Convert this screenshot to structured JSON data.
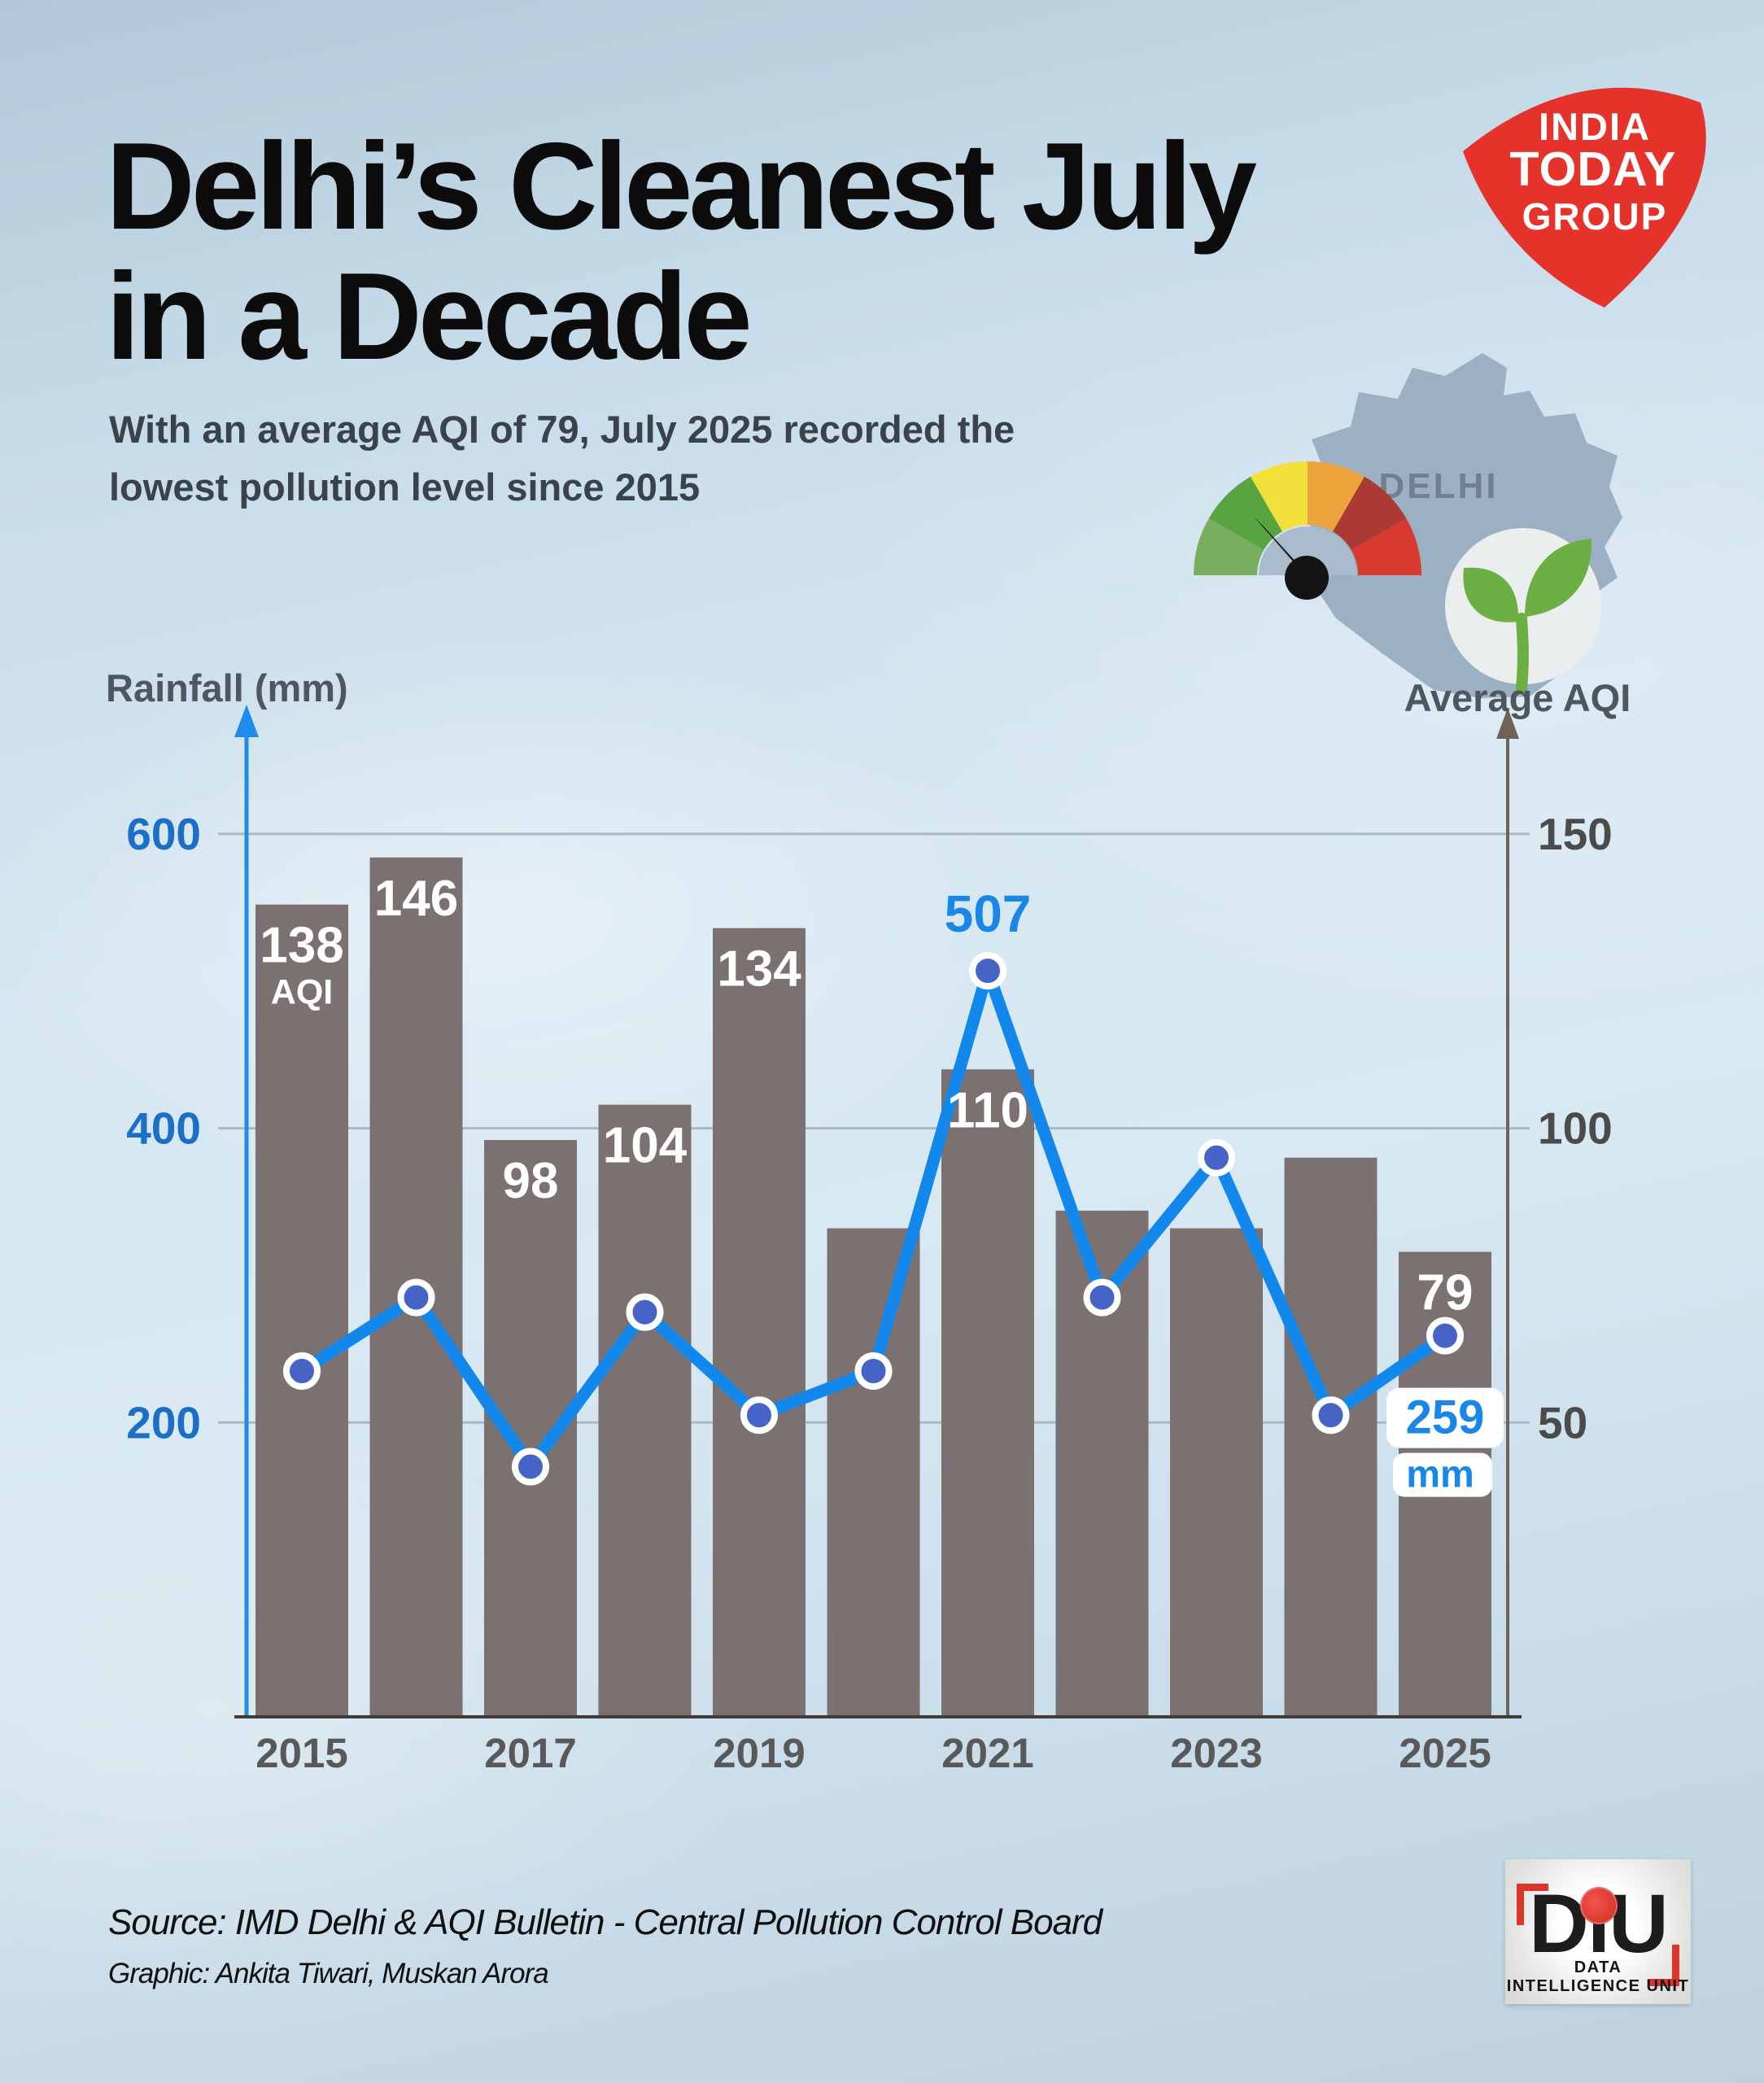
{
  "page": {
    "title_lines": [
      "Delhi’s Cleanest July",
      "in a Decade"
    ],
    "subtitle_lines": [
      "With an average AQI of 79, July 2025 recorded the",
      "lowest pollution level since 2015"
    ]
  },
  "branding": {
    "india_today": {
      "lines": [
        "INDIA",
        "TODAY",
        "GROUP"
      ],
      "shape_color": "#e5322a"
    },
    "diu": {
      "wordmark": "DiU",
      "tagline": "DATA INTELLIGENCE UNIT",
      "accent_color": "#da352b"
    }
  },
  "delhi_graphic": {
    "label": "DELHI",
    "map_color": "#9cb0c3",
    "gauge_colors": [
      "#79ae5e",
      "#58a441",
      "#f2e13a",
      "#eda43d",
      "#aa3a33",
      "#d83a30"
    ],
    "leaf_color": "#6cb043"
  },
  "chart_data": {
    "type": "bar+line",
    "title": "Delhi July rainfall vs average AQI, 2015-2025",
    "categories": [
      2015,
      2016,
      2017,
      2018,
      2019,
      2020,
      2021,
      2022,
      2023,
      2024,
      2025
    ],
    "x_tick_labels": [
      "2015",
      "2017",
      "2019",
      "2021",
      "2023",
      "2025"
    ],
    "series": [
      {
        "name": "Average AQI",
        "type": "bar",
        "axis": "right",
        "color": "#7b7171",
        "values": [
          138,
          146,
          98,
          104,
          134,
          83,
          110,
          86,
          83,
          95,
          79
        ],
        "point_labels": [
          "138",
          "146",
          "98",
          "104",
          "134",
          "",
          "110",
          "",
          "",
          "",
          "79"
        ],
        "label_color": "#ffffff"
      },
      {
        "name": "Rainfall (mm)",
        "type": "line",
        "axis": "left",
        "color": "#1287ec",
        "marker_fill": "#4663c6",
        "marker_ring": "#ffffff",
        "values": [
          235,
          285,
          170,
          275,
          205,
          235,
          507,
          285,
          380,
          205,
          259
        ],
        "point_labels": [
          "",
          "",
          "",
          "",
          "",
          "",
          "507",
          "",
          "",
          "",
          "259"
        ],
        "label_color": "#1887e8"
      }
    ],
    "left_axis": {
      "label": "Rainfall (mm)",
      "ticks": [
        600,
        400,
        200
      ],
      "range": [
        0,
        660
      ],
      "tick_color": "#1b6fc8",
      "line_color": "#1d8ceb"
    },
    "right_axis": {
      "label": "Average AQI",
      "ticks": [
        150,
        100,
        50
      ],
      "range": [
        0,
        165
      ],
      "tick_color": "#4b4b4b",
      "line_color": "#6f6359"
    },
    "grid": true,
    "legend": "none",
    "annotations": {
      "aqi_unit": "AQI",
      "rain_unit": "mm",
      "rain_peak_label": "507",
      "rain_2025_label": "259"
    },
    "note": "Bars = average AQI (right axis, labels in white). Blue line = July rainfall in mm (left axis). Unlabeled bar/line values estimated from pixel positions."
  },
  "source": {
    "line1": "Source: IMD Delhi & AQI Bulletin - Central Pollution Control Board",
    "line2": "Graphic: Ankita Tiwari, Muskan Arora"
  }
}
